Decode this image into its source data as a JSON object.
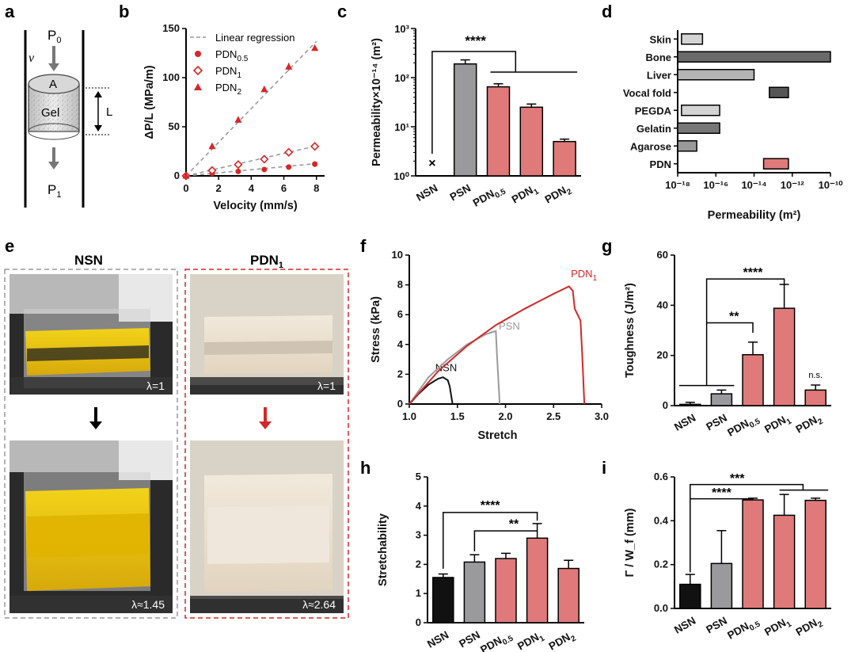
{
  "panels": {
    "a": "a",
    "b": "b",
    "c": "c",
    "d": "d",
    "e": "e",
    "f": "f",
    "g": "g",
    "h": "h",
    "i": "i"
  },
  "colors": {
    "red": "#d62728",
    "pink": "#e07a7a",
    "gray": "#9a9a9c",
    "black": "#111111",
    "dgray": "#6a6a6a",
    "lgray": "#d4d4d4",
    "mgray": "#b4b4b4"
  },
  "schematic_a": {
    "p0": "P",
    "p0_sub": "0",
    "v": "v",
    "area": "A",
    "gel": "Gel",
    "length": "L",
    "p1": "P",
    "p1_sub": "1"
  },
  "photos_e": {
    "nsn_title": "NSN",
    "pdn_title": "PDN",
    "pdn_sub": "1",
    "top_left": "λ=1",
    "top_right": "λ=1",
    "bottom_left": "λ≈1.45",
    "bottom_right": "λ≈2.64"
  },
  "chart_data": [
    {
      "id": "b",
      "type": "scatter",
      "xlabel": "Velocity (mm/s)",
      "ylabel": "ΔP/L (MPa/m)",
      "xlim": [
        0,
        8.5
      ],
      "ylim": [
        0,
        150
      ],
      "xticks": [
        "0",
        "2",
        "4",
        "6",
        "8"
      ],
      "yticks": [
        "0",
        "50",
        "100",
        "150"
      ],
      "legend_position": "top-left",
      "legend": [
        {
          "label": "Linear regression",
          "marker": "dash"
        },
        {
          "label": "PDN",
          "sub": "0.5",
          "marker": "circle"
        },
        {
          "label": "PDN",
          "sub": "1",
          "marker": "diamond"
        },
        {
          "label": "PDN",
          "sub": "2",
          "marker": "triangle"
        }
      ],
      "series": [
        {
          "name": "PDN0.5",
          "marker": "circle",
          "x": [
            0,
            1.6,
            3.2,
            4.8,
            6.3,
            7.9
          ],
          "y": [
            0,
            2.5,
            4.5,
            6.5,
            9,
            12
          ],
          "err": [
            0,
            0,
            0,
            0,
            0,
            3
          ],
          "fit_end": [
            8,
            12.5
          ]
        },
        {
          "name": "PDN1",
          "marker": "diamond",
          "x": [
            0,
            1.6,
            3.2,
            4.8,
            6.3,
            7.9
          ],
          "y": [
            0,
            5.5,
            11.5,
            17,
            24,
            30
          ],
          "err": [
            0,
            0,
            0,
            0,
            0,
            3
          ],
          "fit_end": [
            8,
            30.5
          ]
        },
        {
          "name": "PDN2",
          "marker": "triangle",
          "x": [
            0,
            1.6,
            3.2,
            4.8,
            6.3,
            7.9
          ],
          "y": [
            0,
            30,
            57,
            88,
            111,
            130
          ],
          "err": [
            0,
            0,
            0,
            0,
            4,
            0
          ],
          "fit_end": [
            8,
            137
          ]
        }
      ]
    },
    {
      "id": "c",
      "type": "bar",
      "yscale": "log",
      "ylabel": "Permeability×10⁻¹⁴ (m²)",
      "ylim": [
        1,
        1000
      ],
      "yticks": [
        "10⁰",
        "10¹",
        "10²",
        "10³"
      ],
      "categories": [
        {
          "label": "NSN"
        },
        {
          "label": "PSN"
        },
        {
          "label": "PDN",
          "sub": "0.5"
        },
        {
          "label": "PDN",
          "sub": "1"
        },
        {
          "label": "PDN",
          "sub": "2"
        }
      ],
      "values": [
        null,
        190,
        65,
        25,
        5
      ],
      "errors": [
        0,
        40,
        10,
        4,
        0.6
      ],
      "colors": [
        "none",
        "#9a9a9c",
        "#e07a7a",
        "#e07a7a",
        "#e07a7a"
      ],
      "missing_marker": "×",
      "annotation": "****"
    },
    {
      "id": "d",
      "type": "bar",
      "orientation": "horizontal",
      "xscale": "log",
      "xlabel": "Permeability (m²)",
      "xlim": [
        -18,
        -10
      ],
      "xticks": [
        "10⁻¹⁸",
        "10⁻¹⁶",
        "10⁻¹⁴",
        "10⁻¹²",
        "10⁻¹⁰"
      ],
      "rows": [
        {
          "label": "Skin",
          "from": -17.8,
          "to": -16.7,
          "color": "#d4d4d4"
        },
        {
          "label": "Bone",
          "from": -18,
          "to": -10,
          "color": "#6a6a6a"
        },
        {
          "label": "Liver",
          "from": -18,
          "to": -14,
          "color": "#b4b4b4"
        },
        {
          "label": "Vocal fold",
          "from": -13.2,
          "to": -12.2,
          "color": "#555555"
        },
        {
          "label": "PEGDA",
          "from": -17.8,
          "to": -15.8,
          "color": "#d4d4d4"
        },
        {
          "label": "Gelatin",
          "from": -18,
          "to": -15.8,
          "color": "#777777"
        },
        {
          "label": "Agarose",
          "from": -18,
          "to": -17,
          "color": "#999999"
        },
        {
          "label": "PDN",
          "from": -13.5,
          "to": -12.2,
          "color": "#e07a7a",
          "label_color": "#d62728"
        }
      ]
    },
    {
      "id": "f",
      "type": "line",
      "xlabel": "Stretch",
      "ylabel": "Stress (kPa)",
      "xlim": [
        1,
        3
      ],
      "ylim": [
        0,
        10
      ],
      "xticks": [
        "1.0",
        "1.5",
        "2.0",
        "2.5",
        "3.0"
      ],
      "yticks": [
        "0",
        "2",
        "4",
        "6",
        "8",
        "10"
      ],
      "series": [
        {
          "name": "NSN",
          "color": "#111111",
          "x": [
            1,
            1.1,
            1.2,
            1.3,
            1.35,
            1.4,
            1.42,
            1.45
          ],
          "y": [
            0,
            0.7,
            1.3,
            1.7,
            1.8,
            1.6,
            1.2,
            0
          ]
        },
        {
          "name": "PSN",
          "color": "#9a9a9c",
          "x": [
            1,
            1.2,
            1.4,
            1.6,
            1.8,
            1.9,
            1.91,
            1.94
          ],
          "y": [
            0,
            1.8,
            3.0,
            4.0,
            4.7,
            4.9,
            3.5,
            0
          ]
        },
        {
          "name": "PDN",
          "name_sub": "1",
          "color": "#d62728",
          "x": [
            1,
            1.3,
            1.6,
            1.9,
            2.2,
            2.5,
            2.66,
            2.7,
            2.72,
            2.78,
            2.8,
            2.82
          ],
          "y": [
            0,
            2.2,
            3.9,
            5.3,
            6.4,
            7.4,
            7.9,
            7.6,
            6.4,
            5.6,
            3,
            0
          ]
        }
      ]
    },
    {
      "id": "g",
      "type": "bar",
      "ylabel": "Toughness (J/m²)",
      "ylim": [
        0,
        60
      ],
      "yticks": [
        "0",
        "20",
        "40",
        "60"
      ],
      "categories": [
        {
          "label": "NSN"
        },
        {
          "label": "PSN"
        },
        {
          "label": "PDN",
          "sub": "0.5"
        },
        {
          "label": "PDN",
          "sub": "1"
        },
        {
          "label": "PDN",
          "sub": "2"
        }
      ],
      "values": [
        0.5,
        4.7,
        20.3,
        38.8,
        6.2
      ],
      "errors": [
        0.8,
        1.5,
        5,
        9.5,
        2
      ],
      "colors": [
        "#111111",
        "#9a9a9c",
        "#e07a7a",
        "#e07a7a",
        "#e07a7a"
      ],
      "annotations": [
        "****",
        "**",
        "n.s."
      ]
    },
    {
      "id": "h",
      "type": "bar",
      "ylabel": "Stretchability",
      "ylim": [
        0,
        5
      ],
      "yticks": [
        "0",
        "1",
        "2",
        "3",
        "4",
        "5"
      ],
      "categories": [
        {
          "label": "NSN"
        },
        {
          "label": "PSN"
        },
        {
          "label": "PDN",
          "sub": "0.5"
        },
        {
          "label": "PDN",
          "sub": "1"
        },
        {
          "label": "PDN",
          "sub": "2"
        }
      ],
      "values": [
        1.55,
        2.08,
        2.2,
        2.9,
        1.86
      ],
      "errors": [
        0.12,
        0.25,
        0.18,
        0.5,
        0.28
      ],
      "colors": [
        "#111111",
        "#9a9a9c",
        "#e07a7a",
        "#e07a7a",
        "#e07a7a"
      ],
      "annotations": [
        "****",
        "**"
      ]
    },
    {
      "id": "i",
      "type": "bar",
      "ylabel": "Γ / W_f (mm)",
      "ylim": [
        0,
        0.6
      ],
      "yticks": [
        "0.0",
        "0.2",
        "0.4",
        "0.6"
      ],
      "categories": [
        {
          "label": "NSN"
        },
        {
          "label": "PSN"
        },
        {
          "label": "PDN",
          "sub": "0.5"
        },
        {
          "label": "PDN",
          "sub": "1"
        },
        {
          "label": "PDN",
          "sub": "2"
        }
      ],
      "values": [
        0.11,
        0.205,
        0.495,
        0.425,
        0.493
      ],
      "errors": [
        0.045,
        0.15,
        0.008,
        0.095,
        0.01
      ],
      "colors": [
        "#111111",
        "#9a9a9c",
        "#e07a7a",
        "#e07a7a",
        "#e07a7a"
      ],
      "annotations": [
        "***",
        "****"
      ]
    }
  ]
}
